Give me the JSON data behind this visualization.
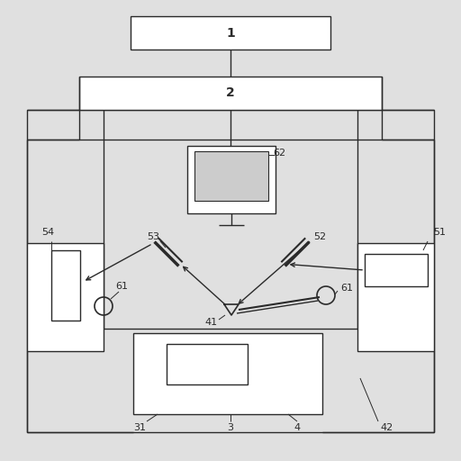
{
  "bg_color": "#e0e0e0",
  "line_color": "#2a2a2a",
  "box_fill": "#ffffff",
  "figsize": [
    5.12,
    5.12
  ],
  "dpi": 100
}
